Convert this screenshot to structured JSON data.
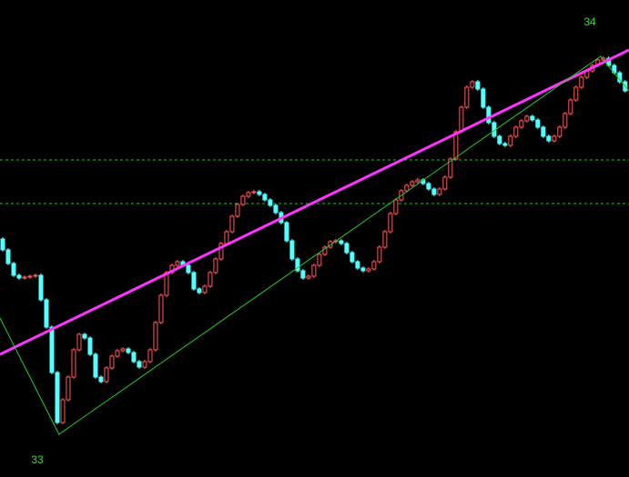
{
  "chart_data": {
    "type": "candlestick",
    "xlim": [
      -0.5,
      114.7
    ],
    "ylim": [
      0,
      525
    ],
    "up_color": "#ff5a5a",
    "down_color": "#54ffff",
    "open": [
      262,
      250,
      235,
      222,
      219,
      220,
      221,
      222,
      195,
      165,
      115,
      60,
      85,
      110,
      140,
      157,
      153,
      135,
      110,
      105,
      120,
      133,
      139,
      141,
      137,
      127,
      121,
      127,
      140,
      170,
      200,
      225,
      233,
      237,
      233,
      225,
      207,
      203,
      210,
      225,
      240,
      257,
      270,
      287,
      300,
      309,
      313,
      314,
      311,
      305,
      299,
      291,
      280,
      260,
      240,
      227,
      219,
      221,
      233,
      245,
      253,
      259,
      260,
      257,
      247,
      237,
      230,
      227,
      229,
      237,
      253,
      270,
      290,
      305,
      315,
      321,
      325,
      327,
      323,
      317,
      311,
      317,
      330,
      350,
      380,
      407,
      429,
      435,
      427,
      407,
      390,
      375,
      367,
      365,
      375,
      385,
      392,
      397,
      393,
      385,
      375,
      370,
      375,
      385,
      400,
      415,
      429,
      440,
      447,
      453,
      459,
      461,
      453,
      445,
      435
    ],
    "close": [
      250,
      235,
      222,
      219,
      220,
      221,
      222,
      195,
      165,
      115,
      60,
      85,
      110,
      140,
      157,
      153,
      135,
      110,
      105,
      120,
      133,
      139,
      141,
      137,
      127,
      121,
      127,
      140,
      170,
      200,
      225,
      233,
      237,
      233,
      225,
      207,
      203,
      210,
      225,
      240,
      257,
      270,
      287,
      300,
      309,
      313,
      314,
      311,
      305,
      299,
      291,
      280,
      260,
      240,
      227,
      219,
      221,
      233,
      245,
      253,
      259,
      260,
      257,
      247,
      237,
      230,
      227,
      229,
      237,
      253,
      270,
      290,
      305,
      315,
      321,
      325,
      327,
      323,
      317,
      311,
      317,
      330,
      350,
      380,
      407,
      429,
      435,
      427,
      407,
      390,
      375,
      367,
      365,
      375,
      385,
      392,
      397,
      393,
      385,
      375,
      370,
      375,
      385,
      400,
      415,
      429,
      440,
      447,
      453,
      459,
      461,
      453,
      445,
      435,
      425
    ],
    "trend_lines": [
      {
        "color": "#ff33ff",
        "x": [
          -0.5,
          114.7
        ],
        "values": [
          135,
          470
        ]
      },
      {
        "color": "#22cc22",
        "x": [
          -0.5,
          10.3,
          109.5,
          114.7
        ],
        "values": [
          175,
          47,
          463,
          425
        ]
      }
    ],
    "levels": [
      349,
      301
    ],
    "level_color": "#22bb22",
    "annotations": [
      "33",
      "34"
    ]
  }
}
